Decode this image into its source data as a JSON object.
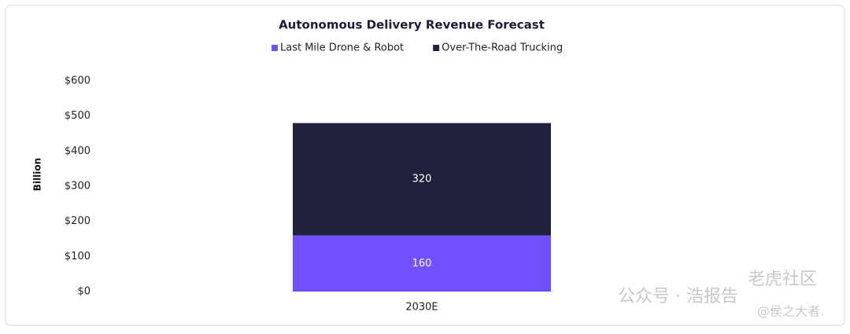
{
  "chart_data": {
    "type": "stacked_bar",
    "title": "Autonomous Delivery Revenue Forecast",
    "y_label": "Billion",
    "categories": [
      "2030E"
    ],
    "series": [
      {
        "name": "Last Mile Drone & Robot",
        "color": "#7050ff",
        "values": [
          160
        ]
      },
      {
        "name": "Over-The-Road Trucking",
        "color": "#20213d",
        "values": [
          320
        ]
      }
    ],
    "ylim": [
      0,
      600
    ],
    "yticks": [
      {
        "value": 0,
        "label": "$0"
      },
      {
        "value": 100,
        "label": "$100"
      },
      {
        "value": 200,
        "label": "$200"
      },
      {
        "value": 300,
        "label": "$300"
      },
      {
        "value": 400,
        "label": "$400"
      },
      {
        "value": 500,
        "label": "$500"
      },
      {
        "value": 600,
        "label": "$600"
      }
    ],
    "grid": false,
    "legend": "top"
  },
  "watermark": [
    "公众号 · 浩报告",
    "老虎社区",
    "@侯之大者."
  ]
}
